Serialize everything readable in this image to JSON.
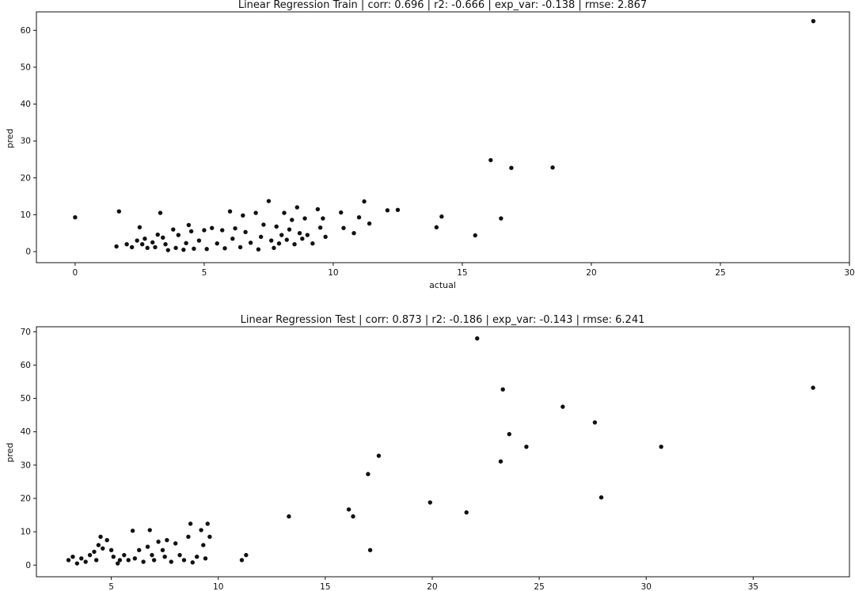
{
  "chart_data": [
    {
      "type": "scatter",
      "title": "Linear Regression Train | corr: 0.696 | r2: -0.666 | exp_var: -0.138 | rmse: 2.867",
      "xlabel": "actual",
      "ylabel": "pred",
      "xlim": [
        -1.5,
        30
      ],
      "ylim": [
        -3,
        65
      ],
      "xticks": [
        0,
        5,
        10,
        15,
        20,
        25,
        30
      ],
      "yticks": [
        0,
        10,
        20,
        30,
        40,
        50,
        60
      ],
      "grid": false,
      "marker_color": "#111111",
      "points": [
        [
          0.0,
          9.3
        ],
        [
          1.7,
          10.9
        ],
        [
          1.6,
          1.4
        ],
        [
          2.0,
          2.0
        ],
        [
          2.2,
          1.2
        ],
        [
          2.4,
          3.0
        ],
        [
          2.5,
          6.6
        ],
        [
          2.6,
          2.0
        ],
        [
          2.7,
          3.5
        ],
        [
          2.8,
          1.0
        ],
        [
          3.0,
          2.5
        ],
        [
          3.1,
          1.2
        ],
        [
          3.2,
          4.6
        ],
        [
          3.3,
          10.5
        ],
        [
          3.4,
          3.8
        ],
        [
          3.5,
          2.0
        ],
        [
          3.6,
          0.4
        ],
        [
          3.8,
          6.0
        ],
        [
          3.9,
          1.0
        ],
        [
          4.0,
          4.5
        ],
        [
          4.2,
          0.5
        ],
        [
          4.3,
          2.3
        ],
        [
          4.4,
          7.2
        ],
        [
          4.5,
          5.5
        ],
        [
          4.6,
          0.8
        ],
        [
          4.8,
          3.0
        ],
        [
          5.0,
          5.8
        ],
        [
          5.1,
          0.7
        ],
        [
          5.3,
          6.4
        ],
        [
          5.5,
          2.2
        ],
        [
          5.7,
          5.8
        ],
        [
          5.8,
          0.9
        ],
        [
          6.0,
          10.9
        ],
        [
          6.1,
          3.5
        ],
        [
          6.2,
          6.3
        ],
        [
          6.4,
          1.2
        ],
        [
          6.5,
          9.8
        ],
        [
          6.6,
          5.3
        ],
        [
          6.8,
          2.4
        ],
        [
          7.0,
          10.5
        ],
        [
          7.1,
          0.6
        ],
        [
          7.2,
          4.0
        ],
        [
          7.3,
          7.3
        ],
        [
          7.5,
          13.7
        ],
        [
          7.6,
          3.0
        ],
        [
          7.7,
          1.0
        ],
        [
          7.8,
          6.8
        ],
        [
          7.9,
          2.2
        ],
        [
          8.0,
          4.5
        ],
        [
          8.1,
          10.5
        ],
        [
          8.2,
          3.2
        ],
        [
          8.3,
          6.0
        ],
        [
          8.4,
          8.6
        ],
        [
          8.5,
          2.0
        ],
        [
          8.6,
          12.0
        ],
        [
          8.7,
          5.0
        ],
        [
          8.8,
          3.5
        ],
        [
          8.9,
          9.0
        ],
        [
          9.0,
          4.5
        ],
        [
          9.2,
          2.2
        ],
        [
          9.4,
          11.5
        ],
        [
          9.5,
          6.5
        ],
        [
          9.6,
          9.0
        ],
        [
          9.7,
          4.0
        ],
        [
          10.3,
          10.6
        ],
        [
          10.4,
          6.4
        ],
        [
          10.8,
          5.0
        ],
        [
          11.0,
          9.3
        ],
        [
          11.2,
          13.6
        ],
        [
          11.4,
          7.6
        ],
        [
          12.1,
          11.2
        ],
        [
          12.5,
          11.3
        ],
        [
          14.0,
          6.6
        ],
        [
          14.2,
          9.5
        ],
        [
          15.5,
          4.4
        ],
        [
          16.1,
          24.8
        ],
        [
          16.5,
          9.0
        ],
        [
          16.9,
          22.7
        ],
        [
          18.5,
          22.8
        ],
        [
          28.6,
          62.5
        ]
      ]
    },
    {
      "type": "scatter",
      "title": "Linear Regression Test | corr: 0.873 | r2: -0.186 | exp_var: -0.143 | rmse: 6.241",
      "xlabel": "",
      "ylabel": "pred",
      "xlim": [
        1.5,
        39.5
      ],
      "ylim": [
        -3.5,
        71.5
      ],
      "xticks": [
        5,
        10,
        15,
        20,
        25,
        30,
        35
      ],
      "yticks": [
        0,
        10,
        20,
        30,
        40,
        50,
        60,
        70
      ],
      "grid": false,
      "marker_color": "#111111",
      "points": [
        [
          3.0,
          1.5
        ],
        [
          3.2,
          2.5
        ],
        [
          3.4,
          0.5
        ],
        [
          3.6,
          2.0
        ],
        [
          3.8,
          1.0
        ],
        [
          4.0,
          3.0
        ],
        [
          4.2,
          4.0
        ],
        [
          4.3,
          1.5
        ],
        [
          4.4,
          6.0
        ],
        [
          4.5,
          8.5
        ],
        [
          4.6,
          5.0
        ],
        [
          4.8,
          7.5
        ],
        [
          5.0,
          4.5
        ],
        [
          5.1,
          2.5
        ],
        [
          5.3,
          0.5
        ],
        [
          5.4,
          1.5
        ],
        [
          5.6,
          3.0
        ],
        [
          5.8,
          1.5
        ],
        [
          6.0,
          10.3
        ],
        [
          6.1,
          2.0
        ],
        [
          6.3,
          4.5
        ],
        [
          6.5,
          1.0
        ],
        [
          6.7,
          5.5
        ],
        [
          6.8,
          10.5
        ],
        [
          6.9,
          3.0
        ],
        [
          7.0,
          1.5
        ],
        [
          7.2,
          7.0
        ],
        [
          7.4,
          4.5
        ],
        [
          7.5,
          2.5
        ],
        [
          7.6,
          7.5
        ],
        [
          7.8,
          1.0
        ],
        [
          8.0,
          6.5
        ],
        [
          8.2,
          3.0
        ],
        [
          8.4,
          1.5
        ],
        [
          8.6,
          8.5
        ],
        [
          8.7,
          12.4
        ],
        [
          8.8,
          0.8
        ],
        [
          9.0,
          2.5
        ],
        [
          9.2,
          10.5
        ],
        [
          9.3,
          6.0
        ],
        [
          9.4,
          2.0
        ],
        [
          9.5,
          12.4
        ],
        [
          9.6,
          8.5
        ],
        [
          11.1,
          1.5
        ],
        [
          11.3,
          3.0
        ],
        [
          13.3,
          14.6
        ],
        [
          16.1,
          16.7
        ],
        [
          16.3,
          14.6
        ],
        [
          17.0,
          27.3
        ],
        [
          17.1,
          4.5
        ],
        [
          17.5,
          32.8
        ],
        [
          19.9,
          18.8
        ],
        [
          21.6,
          15.8
        ],
        [
          22.1,
          68.0
        ],
        [
          23.2,
          31.1
        ],
        [
          23.3,
          52.7
        ],
        [
          23.6,
          39.3
        ],
        [
          24.4,
          35.5
        ],
        [
          26.1,
          47.5
        ],
        [
          27.6,
          42.8
        ],
        [
          27.9,
          20.3
        ],
        [
          30.7,
          35.5
        ],
        [
          37.8,
          53.2
        ]
      ]
    }
  ]
}
